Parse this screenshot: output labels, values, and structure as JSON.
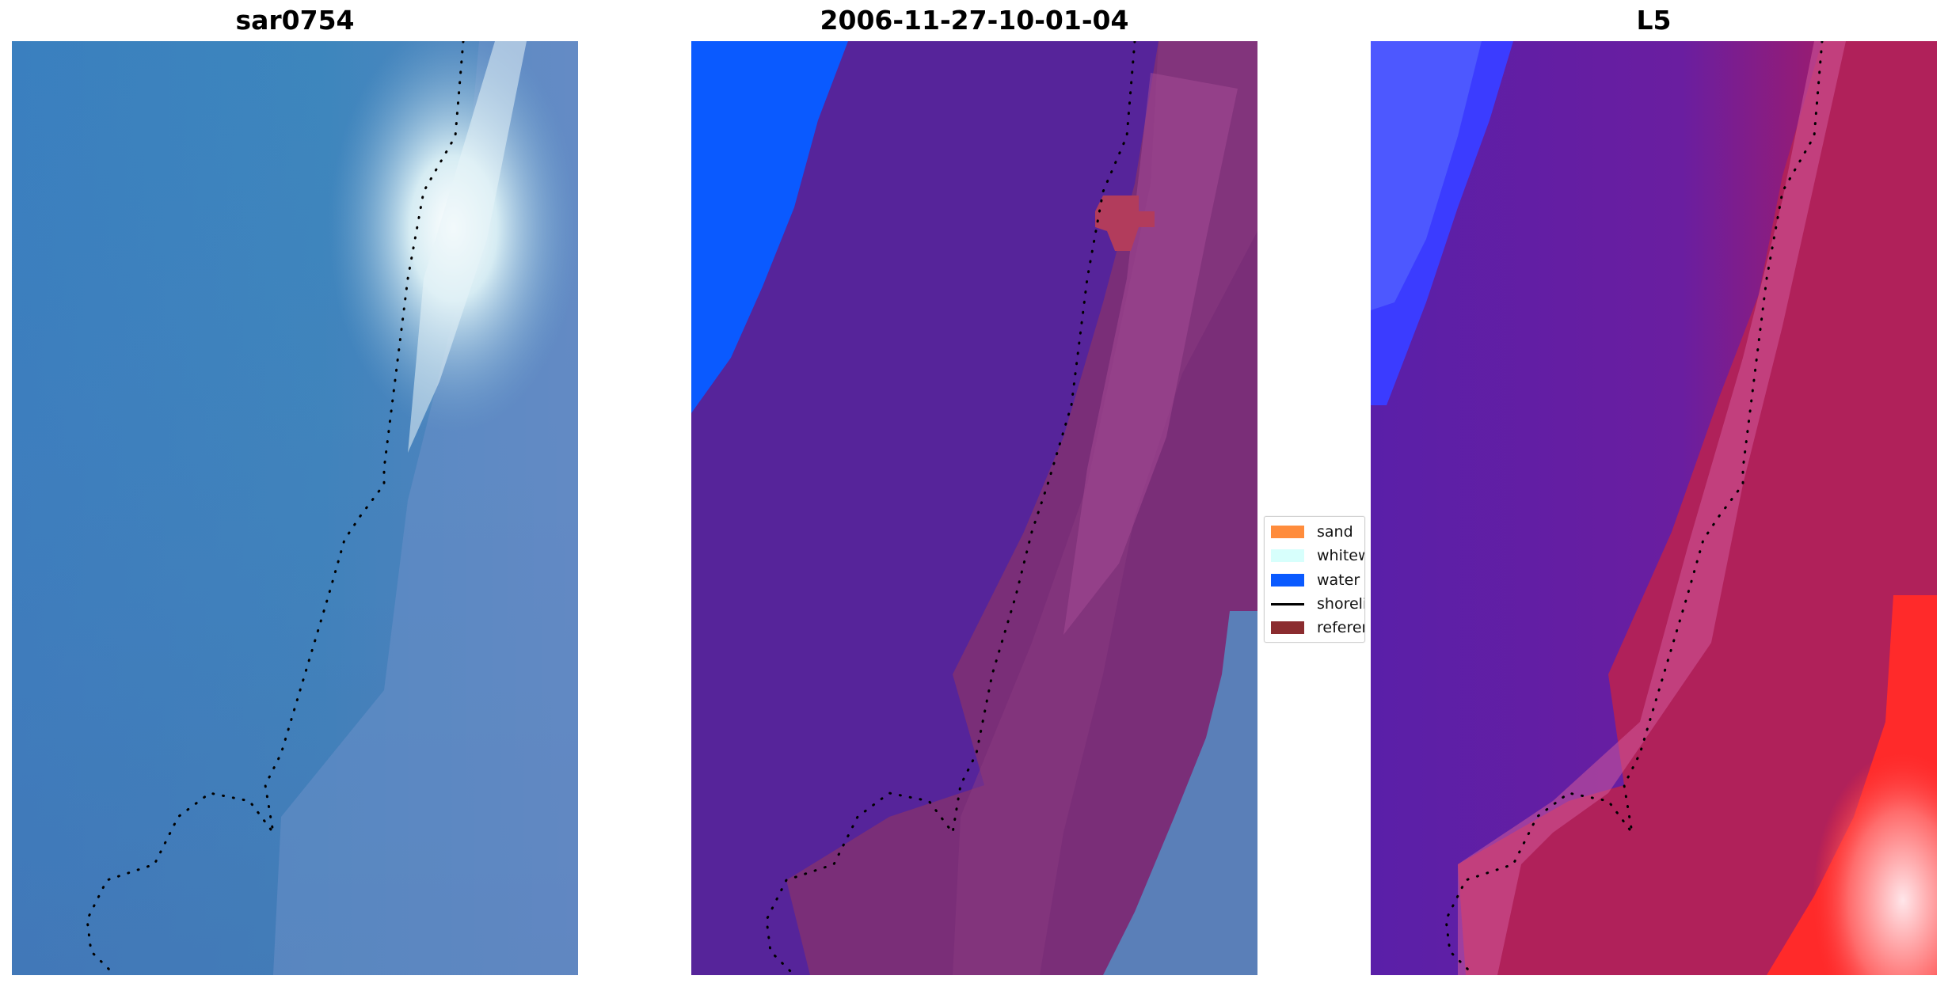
{
  "panels": [
    {
      "title": "sar0754"
    },
    {
      "title": "2006-11-27-10-01-04"
    },
    {
      "title": "L5"
    }
  ],
  "legend": {
    "items": [
      {
        "label": "sand",
        "color": "#ff8c3c"
      },
      {
        "label": "whitewater",
        "color": "#d7fffc"
      },
      {
        "label": "water",
        "color": "#0a5aff"
      },
      {
        "label": "shoreline",
        "color": "#000000"
      },
      {
        "label": "reference",
        "color": "#8b2c2f"
      }
    ]
  },
  "colors": {
    "classified_water": "#0a5aff",
    "classified_land": "#56249a",
    "classified_sand_overlay": "#7a2e78"
  }
}
